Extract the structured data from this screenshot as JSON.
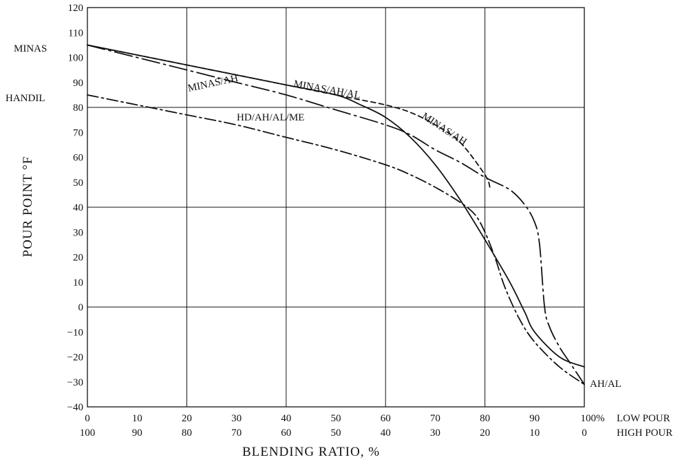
{
  "chart_data": {
    "type": "line",
    "xlabel": "BLENDING RATIO, %",
    "ylabel": "POUR POINT °F",
    "xlim": [
      0,
      100
    ],
    "ylim": [
      -40,
      120
    ],
    "grid": true,
    "x_ticks_low_pour": [
      "0",
      "10",
      "20",
      "30",
      "40",
      "50",
      "60",
      "70",
      "80",
      "90",
      "100%"
    ],
    "x_ticks_high_pour": [
      "100",
      "90",
      "80",
      "70",
      "60",
      "50",
      "40",
      "30",
      "20",
      "10",
      "0"
    ],
    "x_tick_values": [
      0,
      10,
      20,
      30,
      40,
      50,
      60,
      70,
      80,
      90,
      100
    ],
    "y_ticks": [
      "120",
      "110",
      "100",
      "90",
      "80",
      "70",
      "60",
      "50",
      "40",
      "30",
      "20",
      "10",
      "0",
      "−10",
      "−20",
      "−30",
      "−40"
    ],
    "y_tick_values": [
      120,
      110,
      100,
      90,
      80,
      70,
      60,
      50,
      40,
      30,
      20,
      10,
      0,
      -10,
      -20,
      -30,
      -40
    ],
    "row_labels": {
      "low": "LOW POUR",
      "high": "HIGH POUR"
    },
    "crude_labels": {
      "minas": "MINAS",
      "handil": "HANDIL",
      "ah_al": "AH/AL"
    },
    "series": [
      {
        "name": "MINAS/AH/AL",
        "style": "solid",
        "x": [
          0,
          10,
          20,
          30,
          40,
          50,
          55,
          60,
          65,
          70,
          75,
          80,
          85,
          88,
          90,
          95,
          100
        ],
        "y": [
          105,
          101,
          97,
          93,
          89,
          85,
          81,
          76,
          68,
          57,
          43,
          27,
          10,
          -2,
          -10,
          -20,
          -24
        ]
      },
      {
        "name": "MINAS/AH",
        "style": "dash-dot-long",
        "x": [
          0,
          10,
          20,
          30,
          40,
          50,
          60,
          65,
          70,
          75,
          80,
          85,
          88,
          90,
          91,
          92,
          93,
          95,
          97,
          100
        ],
        "y": [
          105,
          100,
          95,
          90,
          85,
          79,
          73,
          69,
          63,
          58,
          52,
          47,
          41,
          34,
          25,
          0,
          -8,
          -16,
          -22,
          -31
        ]
      },
      {
        "name": "MINAS/AH",
        "style": "dashed",
        "x": [
          0,
          10,
          20,
          30,
          40,
          50,
          55,
          60,
          65,
          70,
          75,
          80,
          81
        ],
        "y": [
          105,
          101,
          97,
          93,
          89,
          85,
          83,
          81,
          78,
          73,
          66,
          53,
          48
        ]
      },
      {
        "name": "HD/AH/AL/ME",
        "style": "dash-dot",
        "x": [
          0,
          10,
          20,
          30,
          40,
          50,
          60,
          65,
          70,
          75,
          78,
          80,
          82,
          84,
          87,
          90,
          95,
          100
        ],
        "y": [
          85,
          81,
          77,
          73,
          68,
          63,
          57,
          53,
          48,
          42,
          37,
          30,
          20,
          8,
          -5,
          -14,
          -24,
          -31
        ]
      }
    ]
  }
}
